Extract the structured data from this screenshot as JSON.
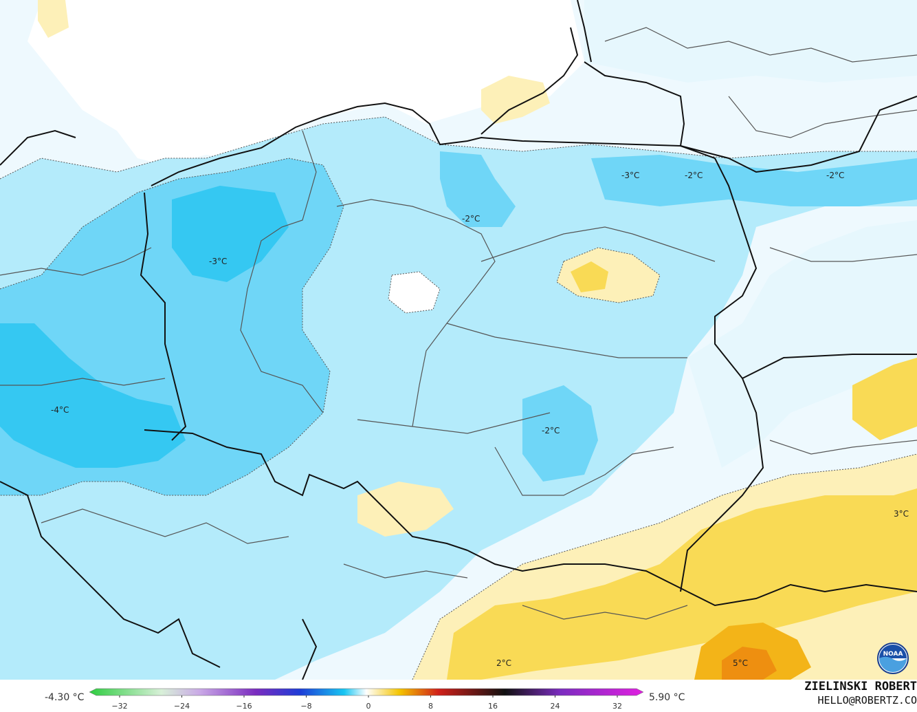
{
  "map": {
    "temperature_labels": [
      {
        "id": "label-3c-west-center",
        "text": "-3°C"
      },
      {
        "id": "label-4c-west",
        "text": "-4°C"
      },
      {
        "id": "label-2c-north-center",
        "text": "-2°C"
      },
      {
        "id": "label-3c-northeast",
        "text": "-3°C"
      },
      {
        "id": "label-2c-northeast-a",
        "text": "-2°C"
      },
      {
        "id": "label-2c-northeast-b",
        "text": "-2°C"
      },
      {
        "id": "label-2c-center",
        "text": "-2°C"
      },
      {
        "id": "label-3c-east",
        "text": "3°C"
      },
      {
        "id": "label-2c-south",
        "text": "2°C"
      },
      {
        "id": "label-5c-southeast",
        "text": "5°C"
      }
    ]
  },
  "legend": {
    "min_value": "-4.30 °C",
    "max_value": "5.90 °C",
    "ticks": [
      "−32",
      "−24",
      "−16",
      "−8",
      "0",
      "8",
      "16",
      "24",
      "32"
    ],
    "colors": {
      "neg_green": "#2ecc40",
      "neg_purple": "#7b2cbf",
      "neg_blue": "#1e3cd6",
      "neg_cyan": "#18c6f2",
      "zero_white": "#ffffff",
      "pos_yellow": "#f4c400",
      "pos_red": "#d0201a",
      "pos_black": "#111111",
      "pos_magenta": "#e020e0"
    }
  },
  "credits": {
    "author": "ZIELINSKI ROBERT",
    "email": "HELLO@ROBERTZ.CO",
    "logo_text": "NOAA"
  },
  "palette": {
    "sea": "#ffffff",
    "cold_light": "#e6f7fd",
    "cold_mid": "#b4ebfb",
    "cold_strong": "#6fd6f7",
    "cold_deep": "#35c8f2",
    "warm_light": "#fdf0b8",
    "warm_mid": "#f9da55",
    "warm_strong": "#f3b418",
    "warm_deep": "#ee8f10"
  }
}
